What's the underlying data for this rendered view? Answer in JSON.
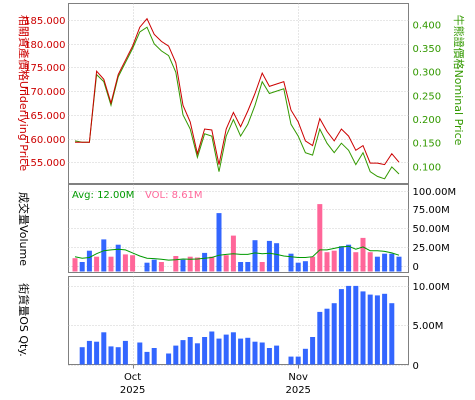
{
  "chart_data": [
    {
      "type": "line",
      "ylabel": "相關資產價格Underlying Price",
      "y2label": "牛熊證價格Nominal Price",
      "ylim": [
        150.5,
        188.5
      ],
      "y2lim": [
        0.065,
        0.445
      ],
      "yticks": [
        155,
        160,
        165,
        170,
        175,
        180,
        185
      ],
      "yticks_labels": [
        "155.000",
        "160.000",
        "165.000",
        "170.000",
        "175.000",
        "180.000",
        "185.000"
      ],
      "y2ticks": [
        0.1,
        0.15,
        0.2,
        0.25,
        0.3,
        0.35,
        0.4
      ],
      "y2ticks_labels": [
        "0.100",
        "0.150",
        "0.200",
        "0.250",
        "0.300",
        "0.350",
        "0.400"
      ],
      "grid": true,
      "series": [
        {
          "name": "Underlying",
          "color": "#cc0000",
          "values": [
            159.2,
            159.2,
            159.2,
            174.2,
            172.5,
            167.5,
            173.5,
            176.5,
            179.5,
            183.5,
            185.3,
            182.0,
            180.5,
            179.5,
            176.0,
            167.0,
            163.5,
            156.8,
            162.0,
            161.8,
            154.5,
            162.0,
            165.5,
            162.5,
            165.8,
            169.5,
            173.8,
            171.0,
            171.5,
            172.0,
            166.0,
            163.5,
            159.5,
            158.5,
            164.2,
            161.5,
            159.5,
            162.0,
            160.5,
            157.5,
            158.5,
            154.8,
            154.8,
            154.5,
            156.8,
            155.0
          ]
        },
        {
          "name": "Nominal",
          "color": "#339900",
          "values": [
            0.155,
            0.152,
            0.152,
            0.295,
            0.28,
            0.23,
            0.29,
            0.32,
            0.35,
            0.385,
            0.395,
            0.36,
            0.345,
            0.335,
            0.3,
            0.21,
            0.18,
            0.12,
            0.17,
            0.165,
            0.09,
            0.165,
            0.2,
            0.165,
            0.19,
            0.23,
            0.28,
            0.255,
            0.26,
            0.265,
            0.19,
            0.165,
            0.13,
            0.125,
            0.18,
            0.15,
            0.13,
            0.15,
            0.135,
            0.105,
            0.13,
            0.09,
            0.08,
            0.075,
            0.1,
            0.085
          ]
        }
      ]
    },
    {
      "type": "bar",
      "ylabel": "成交量Volume",
      "ylim": [
        -9000000,
        108000000
      ],
      "yticks": [
        0,
        25000000,
        50000000,
        75000000,
        100000000
      ],
      "yticks_labels": [
        "0",
        "25.00M",
        "50.00M",
        "75.00M",
        "100.00M"
      ],
      "legend": {
        "avg_label": "Avg: 12.00M",
        "vol_label": "VOL: 8.61M"
      },
      "colors": {
        "up": "#ff6699",
        "down": "#3366ff",
        "avg": "#009900"
      },
      "grid": true,
      "series": [
        {
          "name": "Volume",
          "values": [
            10000000,
            5000000,
            20000000,
            12000000,
            35000000,
            12000000,
            28000000,
            15000000,
            14000000,
            0,
            4000000,
            8000000,
            5000000,
            0,
            13000000,
            8000000,
            12000000,
            11000000,
            17000000,
            12000000,
            70000000,
            14000000,
            40000000,
            5000000,
            5000000,
            34000000,
            5000000,
            33000000,
            30000000,
            0,
            16000000,
            4000000,
            6000000,
            12000000,
            82000000,
            18000000,
            20000000,
            26000000,
            28000000,
            18000000,
            37000000,
            18000000,
            12000000,
            16000000,
            16000000,
            12000000
          ],
          "up": [
            true,
            false,
            false,
            true,
            false,
            true,
            false,
            true,
            true,
            false,
            false,
            false,
            true,
            false,
            true,
            false,
            true,
            true,
            false,
            true,
            false,
            true,
            true,
            false,
            false,
            false,
            true,
            false,
            false,
            false,
            false,
            false,
            false,
            true,
            true,
            true,
            true,
            false,
            false,
            true,
            true,
            true,
            false,
            false,
            false,
            false
          ]
        },
        {
          "name": "Avg",
          "values": [
            12000000,
            10000000,
            11000000,
            16000000,
            20000000,
            21000000,
            22000000,
            21000000,
            17000000,
            13000000,
            10000000,
            9500000,
            8500000,
            7500000,
            8000000,
            9000000,
            8500000,
            9000000,
            10000000,
            11000000,
            14000000,
            15000000,
            16000000,
            15000000,
            15000000,
            17000000,
            16000000,
            16500000,
            15000000,
            13000000,
            12000000,
            11000000,
            11000000,
            12000000,
            21000000,
            21000000,
            23000000,
            25000000,
            26000000,
            22000000,
            25000000,
            20000000,
            20000000,
            19000000,
            17000000,
            14000000
          ]
        }
      ]
    },
    {
      "type": "bar",
      "ylabel": "街貨量OS Qty.",
      "ylim": [
        0,
        11200000
      ],
      "yticks": [
        0,
        5000000,
        10000000
      ],
      "yticks_labels": [
        "0",
        "5.00M",
        "10.00M"
      ],
      "xticks_labels": [
        [
          "Oct",
          "2025"
        ],
        [
          "Nov",
          "2025"
        ]
      ],
      "grid": true,
      "series": [
        {
          "name": "OS Qty",
          "color": "#3366ff",
          "values": [
            0,
            2200000,
            3000000,
            2900000,
            4100000,
            2300000,
            2200000,
            3000000,
            0,
            2800000,
            1600000,
            2100000,
            0,
            1400000,
            2400000,
            3100000,
            3500000,
            2700000,
            3500000,
            4200000,
            3300000,
            3800000,
            4100000,
            3300000,
            3400000,
            2900000,
            2800000,
            2100000,
            2400000,
            0,
            1000000,
            1000000,
            2000000,
            3500000,
            6700000,
            7100000,
            7800000,
            9600000,
            10000000,
            10000000,
            9300000,
            8900000,
            8800000,
            9000000,
            7800000,
            0
          ]
        }
      ]
    }
  ]
}
